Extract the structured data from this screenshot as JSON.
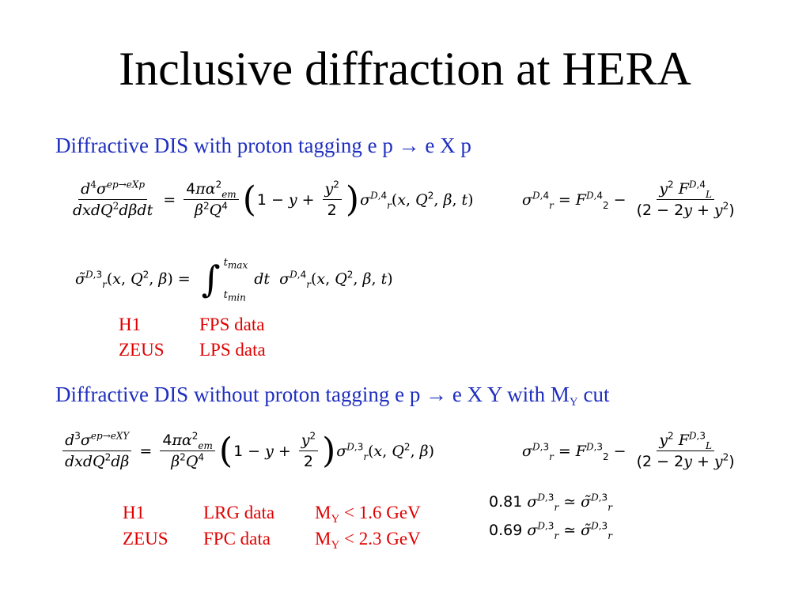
{
  "slide": {
    "title": "Inclusive diffraction at HERA",
    "section1": {
      "heading": "Diffractive DIS with proton tagging e p → e X p",
      "rows": [
        {
          "experiment": "H1",
          "data": "FPS data"
        },
        {
          "experiment": "ZEUS",
          "data": "LPS data"
        }
      ]
    },
    "section2": {
      "heading_main": "Diffractive DIS without proton tagging e p → e X Y with M",
      "heading_sub": "Y",
      "heading_end": " cut",
      "rows": [
        {
          "experiment": "H1",
          "data": "LRG data",
          "cut_m": "M",
          "cut_sub": "Y",
          "cut_val": " < 1.6 GeV"
        },
        {
          "experiment": "ZEUS",
          "data": "FPC data",
          "cut_m": "M",
          "cut_sub": "Y",
          "cut_val": " < 2.3 GeV"
        }
      ],
      "factors": [
        "0.81",
        "0.69"
      ]
    },
    "colors": {
      "heading": "#1f2fbf",
      "highlight": "#e00000"
    }
  }
}
